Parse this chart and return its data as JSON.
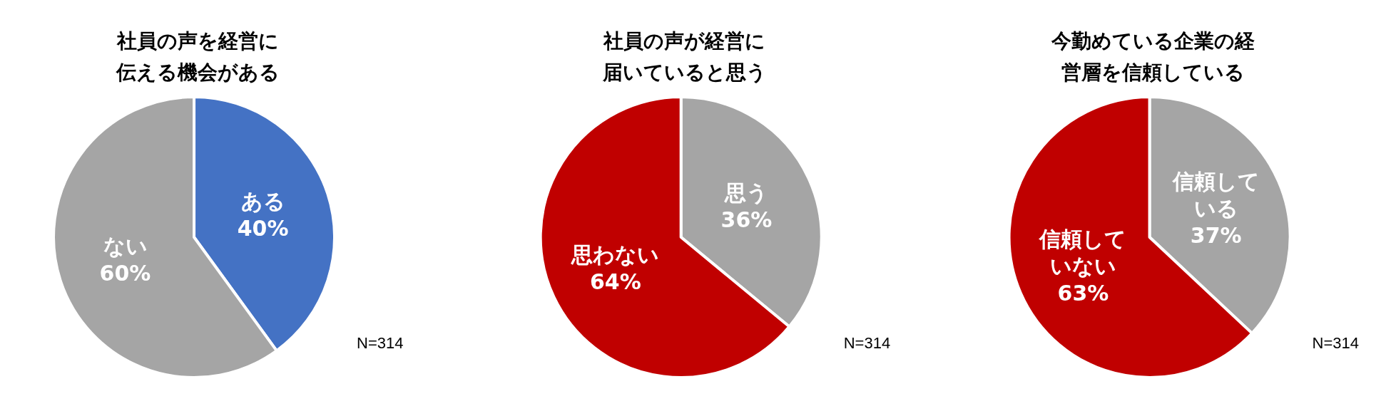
{
  "chart_data": [
    {
      "type": "pie",
      "title": "社員の声を経営に伝える機会がある",
      "categories": [
        "ある",
        "ない"
      ],
      "values": [
        40,
        60
      ],
      "colors": [
        "#4472c4",
        "#a5a5a5"
      ],
      "value_labels": [
        "40%",
        "60%"
      ],
      "legend": false,
      "annotations": [
        "N=314"
      ]
    },
    {
      "type": "pie",
      "title": "社員の声が経営に届いていると思う",
      "categories": [
        "思う",
        "思わない"
      ],
      "values": [
        36,
        64
      ],
      "colors": [
        "#a5a5a5",
        "#c00000"
      ],
      "value_labels": [
        "36%",
        "64%"
      ],
      "legend": false,
      "annotations": [
        "N=314"
      ]
    },
    {
      "type": "pie",
      "title": "今勤めている企業の経営層を信頼している",
      "categories": [
        "信頼している",
        "信頼していない"
      ],
      "values": [
        37,
        63
      ],
      "colors": [
        "#a5a5a5",
        "#c00000"
      ],
      "value_labels": [
        "37%",
        "63%"
      ],
      "legend": false,
      "annotations": [
        "N=314"
      ]
    }
  ]
}
